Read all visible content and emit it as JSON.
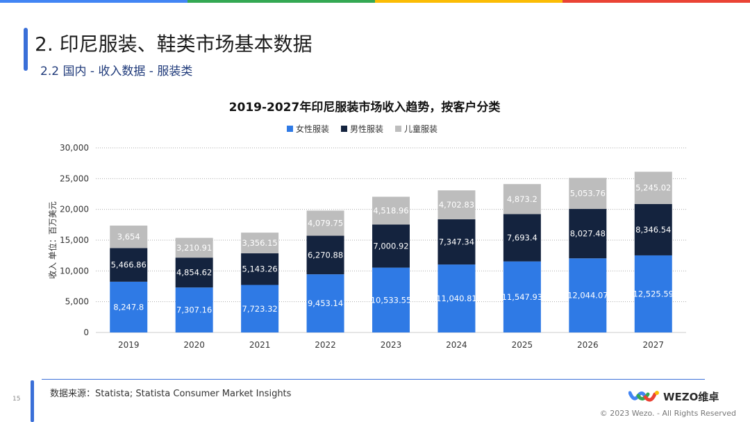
{
  "brand_colors": [
    "#4285f4",
    "#34a853",
    "#fbbc05",
    "#ea4335"
  ],
  "header": {
    "title": "2. 印尼服装、鞋类市场基本数据",
    "subtitle": "2.2 国内 - 收入数据 - 服装类"
  },
  "chart_data": {
    "type": "bar",
    "stacked": true,
    "title": "2019-2027年印尼服装市场收入趋势，按客户分类",
    "ylabel": "收入 单位：百万美元",
    "xlabel": "",
    "ylim": [
      0,
      30000
    ],
    "yticks": [
      0,
      5000,
      10000,
      15000,
      20000,
      25000,
      30000
    ],
    "ytick_labels": [
      "0",
      "5,000",
      "10,000",
      "15,000",
      "20,000",
      "25,000",
      "30,000"
    ],
    "grid": true,
    "legend_position": "top-center",
    "categories": [
      "2019",
      "2020",
      "2021",
      "2022",
      "2023",
      "2024",
      "2025",
      "2026",
      "2027"
    ],
    "series": [
      {
        "name": "女性服装",
        "color": "#2f7ae5",
        "values": [
          8247.8,
          7307.16,
          7723.32,
          9453.14,
          10533.55,
          11040.81,
          11547.93,
          12044.07,
          12525.59
        ],
        "labels": [
          "8,247.8",
          "7,307.16",
          "7,723.32",
          "9,453.14",
          "10,533.55",
          "11,040.81",
          "11,547.93",
          "12,044.07",
          "12,525.59"
        ]
      },
      {
        "name": "男性服装",
        "color": "#14233e",
        "values": [
          5466.86,
          4854.62,
          5143.26,
          6270.88,
          7000.92,
          7347.34,
          7693.4,
          8027.48,
          8346.54
        ],
        "labels": [
          "5,466.86",
          "4,854.62",
          "5,143.26",
          "6,270.88",
          "7,000.92",
          "7,347.34",
          "7,693.4",
          "8,027.48",
          "8,346.54"
        ]
      },
      {
        "name": "儿童服装",
        "color": "#bdbdbd",
        "values": [
          3654,
          3210.91,
          3356.15,
          4079.75,
          4518.96,
          4702.83,
          4873.2,
          5053.76,
          5245.02
        ],
        "labels": [
          "3,654",
          "3,210.91",
          "3,356.15",
          "4,079.75",
          "4,518.96",
          "4,702.83",
          "4,873.2",
          "5,053.76",
          "5,245.02"
        ]
      }
    ]
  },
  "footer": {
    "source": "数据来源：Statista; Statista Consumer Market Insights",
    "page_number": "15",
    "logo_text": "WEZO维卓",
    "copyright": "© 2023 Wezo. - All Rights Reserved"
  }
}
